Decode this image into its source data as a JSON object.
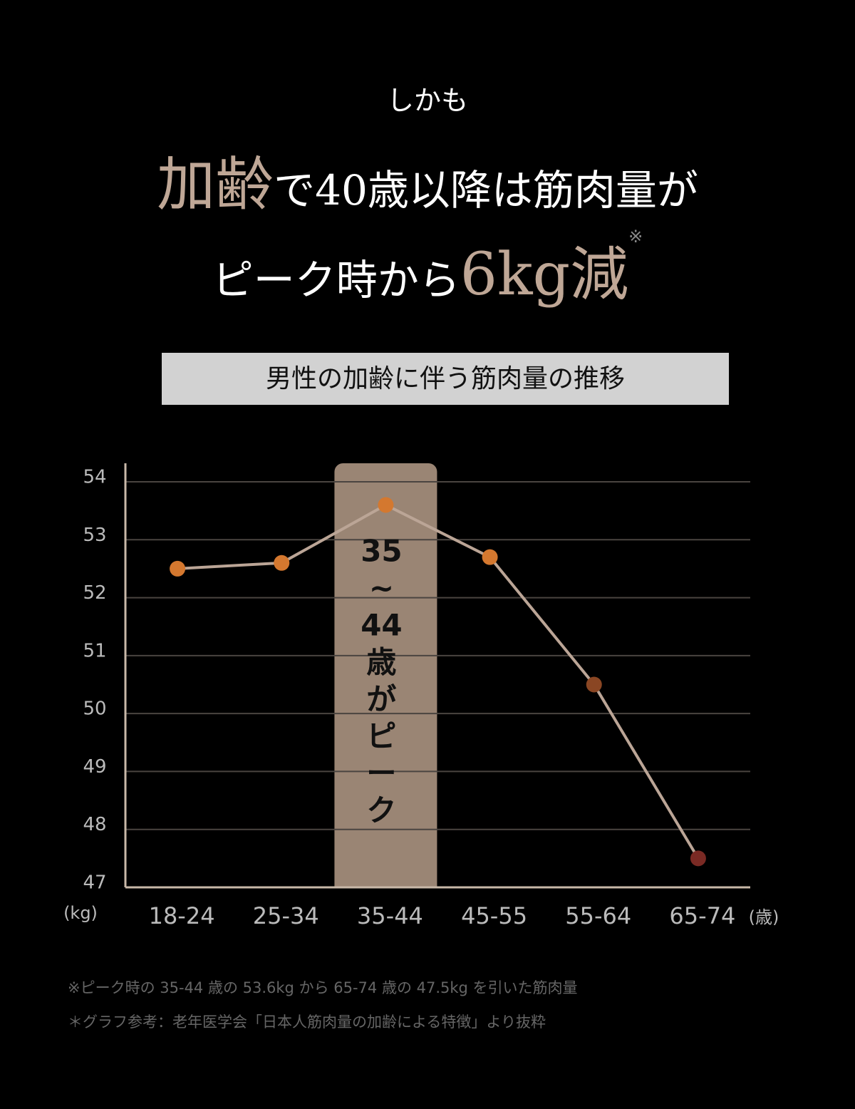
{
  "header": {
    "lead": "しかも",
    "line1_accent": "加齢",
    "line1_rest": "で40歳以降は筋肉量が",
    "line2_start": "ピーク時から",
    "line2_accent": "6kg減",
    "line2_note": "※"
  },
  "chart_data": {
    "type": "line",
    "title": "男性の加齢に伴う筋肉量の推移",
    "categories": [
      "18-24",
      "25-34",
      "35-44",
      "45-55",
      "55-64",
      "65-74"
    ],
    "values": [
      52.5,
      52.6,
      53.6,
      52.7,
      50.5,
      47.5
    ],
    "point_colors": [
      "#d4782f",
      "#d4782f",
      "#d4782f",
      "#d4782f",
      "#8a4623",
      "#7a2a24"
    ],
    "color": "#bba596",
    "ylim": [
      47,
      54
    ],
    "yticks": [
      47,
      48,
      49,
      50,
      51,
      52,
      53,
      54
    ],
    "grid": true,
    "y_unit": "(kg)",
    "x_unit": "(歳)",
    "highlight_category": 2,
    "highlight_label": [
      "35",
      "~",
      "44",
      "歳",
      "が",
      "ピ",
      "ー",
      "ク"
    ]
  },
  "footnotes": [
    "※ピーク時の 35-44 歳の 53.6kg から 65-74 歳の 47.5kg を引いた筋肉量",
    "＊グラフ参考：老年医学会「日本人筋肉量の加齢による特徴」より抜粋"
  ]
}
